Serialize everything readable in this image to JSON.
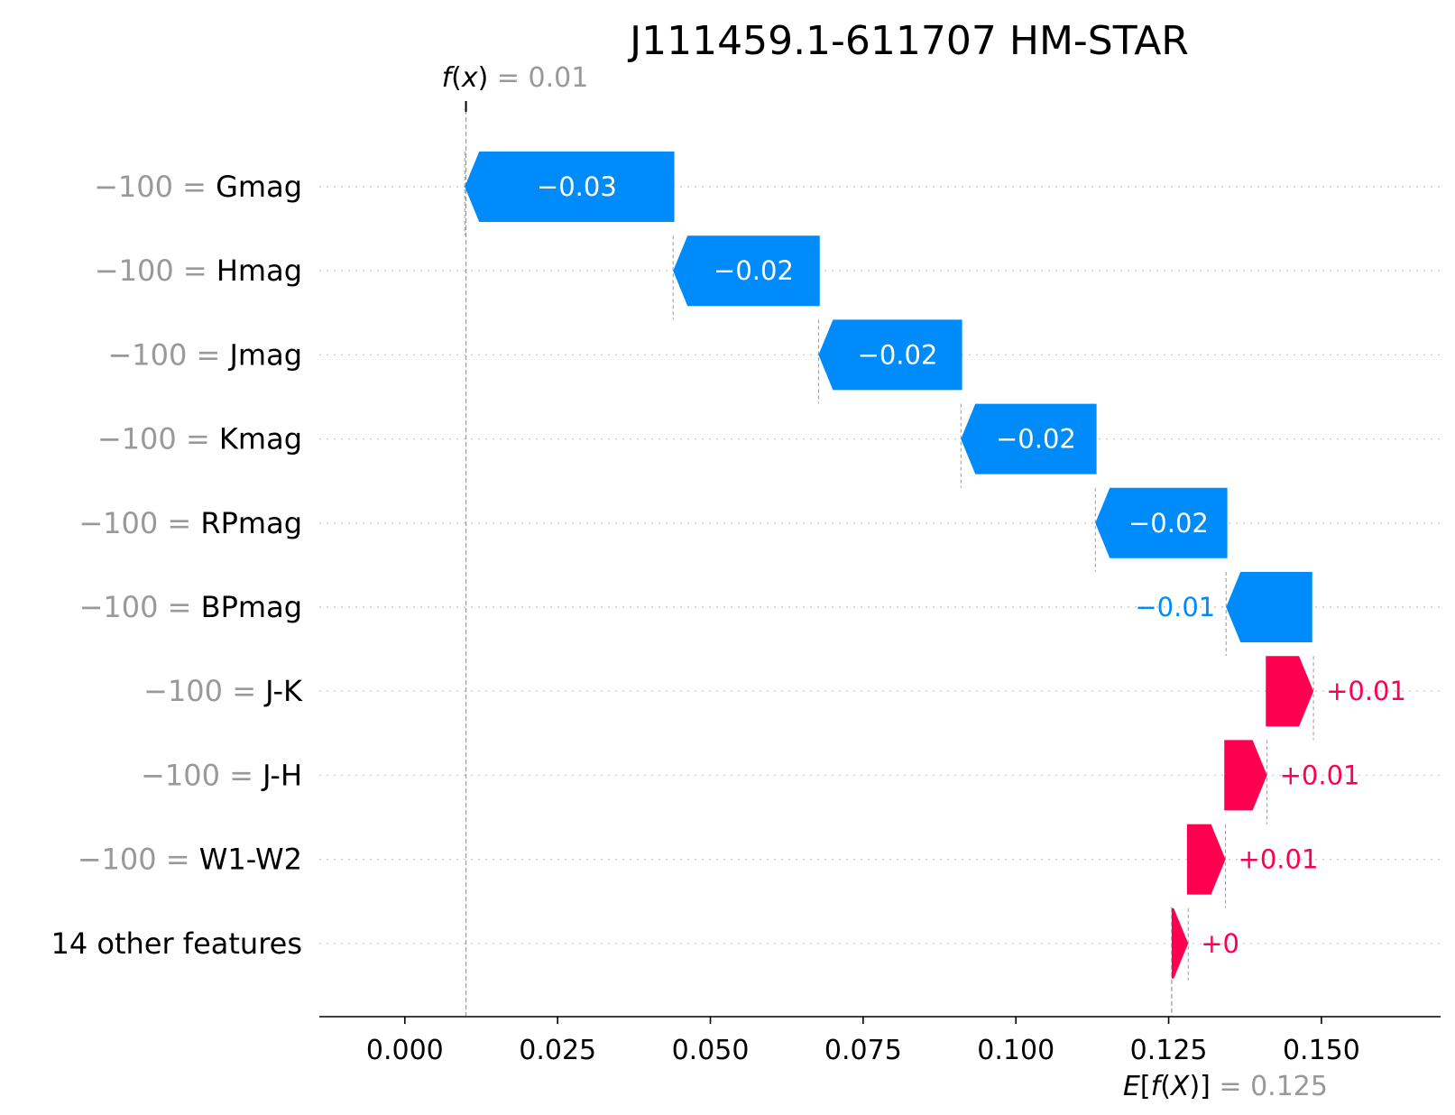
{
  "chart_data": {
    "type": "waterfall",
    "title": "J111459.1-611707 HM-STAR",
    "fx": {
      "label_prefix": "f",
      "label_var": "x",
      "label_rest": " = 0.01",
      "value": 0.01
    },
    "efx": {
      "label_prefix": "E[",
      "label_f": "f",
      "label_var": "X",
      "label_rest": "]",
      "label_value": " = 0.125",
      "value": 0.1255
    },
    "xlim": [
      -0.014,
      0.1695
    ],
    "xticks": [
      0.0,
      0.025,
      0.05,
      0.075,
      0.1,
      0.125,
      0.15
    ],
    "xtick_labels": [
      "0.000",
      "0.025",
      "0.050",
      "0.075",
      "0.100",
      "0.125",
      "0.150"
    ],
    "features": [
      {
        "value_text": "−100 = ",
        "name": "Gmag",
        "start": 0.0441,
        "end": 0.0098,
        "label": "−0.03"
      },
      {
        "value_text": "−100 = ",
        "name": "Hmag",
        "start": 0.0679,
        "end": 0.0439,
        "label": "−0.02"
      },
      {
        "value_text": "−100 = ",
        "name": "Jmag",
        "start": 0.0912,
        "end": 0.0677,
        "label": "−0.02"
      },
      {
        "value_text": "−100 = ",
        "name": "Kmag",
        "start": 0.1132,
        "end": 0.091,
        "label": "−0.02"
      },
      {
        "value_text": "−100 = ",
        "name": "RPmag",
        "start": 0.1346,
        "end": 0.113,
        "label": "−0.02"
      },
      {
        "value_text": "−100 = ",
        "name": "BPmag",
        "start": 0.1485,
        "end": 0.1344,
        "label": "−0.01"
      },
      {
        "value_text": "−100 = ",
        "name": "J-K",
        "start": 0.1409,
        "end": 0.1487,
        "label": "+0.01"
      },
      {
        "value_text": "−100 = ",
        "name": "J-H",
        "start": 0.1341,
        "end": 0.1411,
        "label": "+0.01"
      },
      {
        "value_text": "−100 = ",
        "name": "W1-W2",
        "start": 0.128,
        "end": 0.1343,
        "label": "+0.01"
      },
      {
        "value_text": "",
        "name": "14 other features",
        "start": 0.1255,
        "end": 0.1282,
        "label": "+0"
      }
    ],
    "colors": {
      "negative": "#008bfb",
      "positive": "#ff0051",
      "grey": "#999999"
    }
  }
}
